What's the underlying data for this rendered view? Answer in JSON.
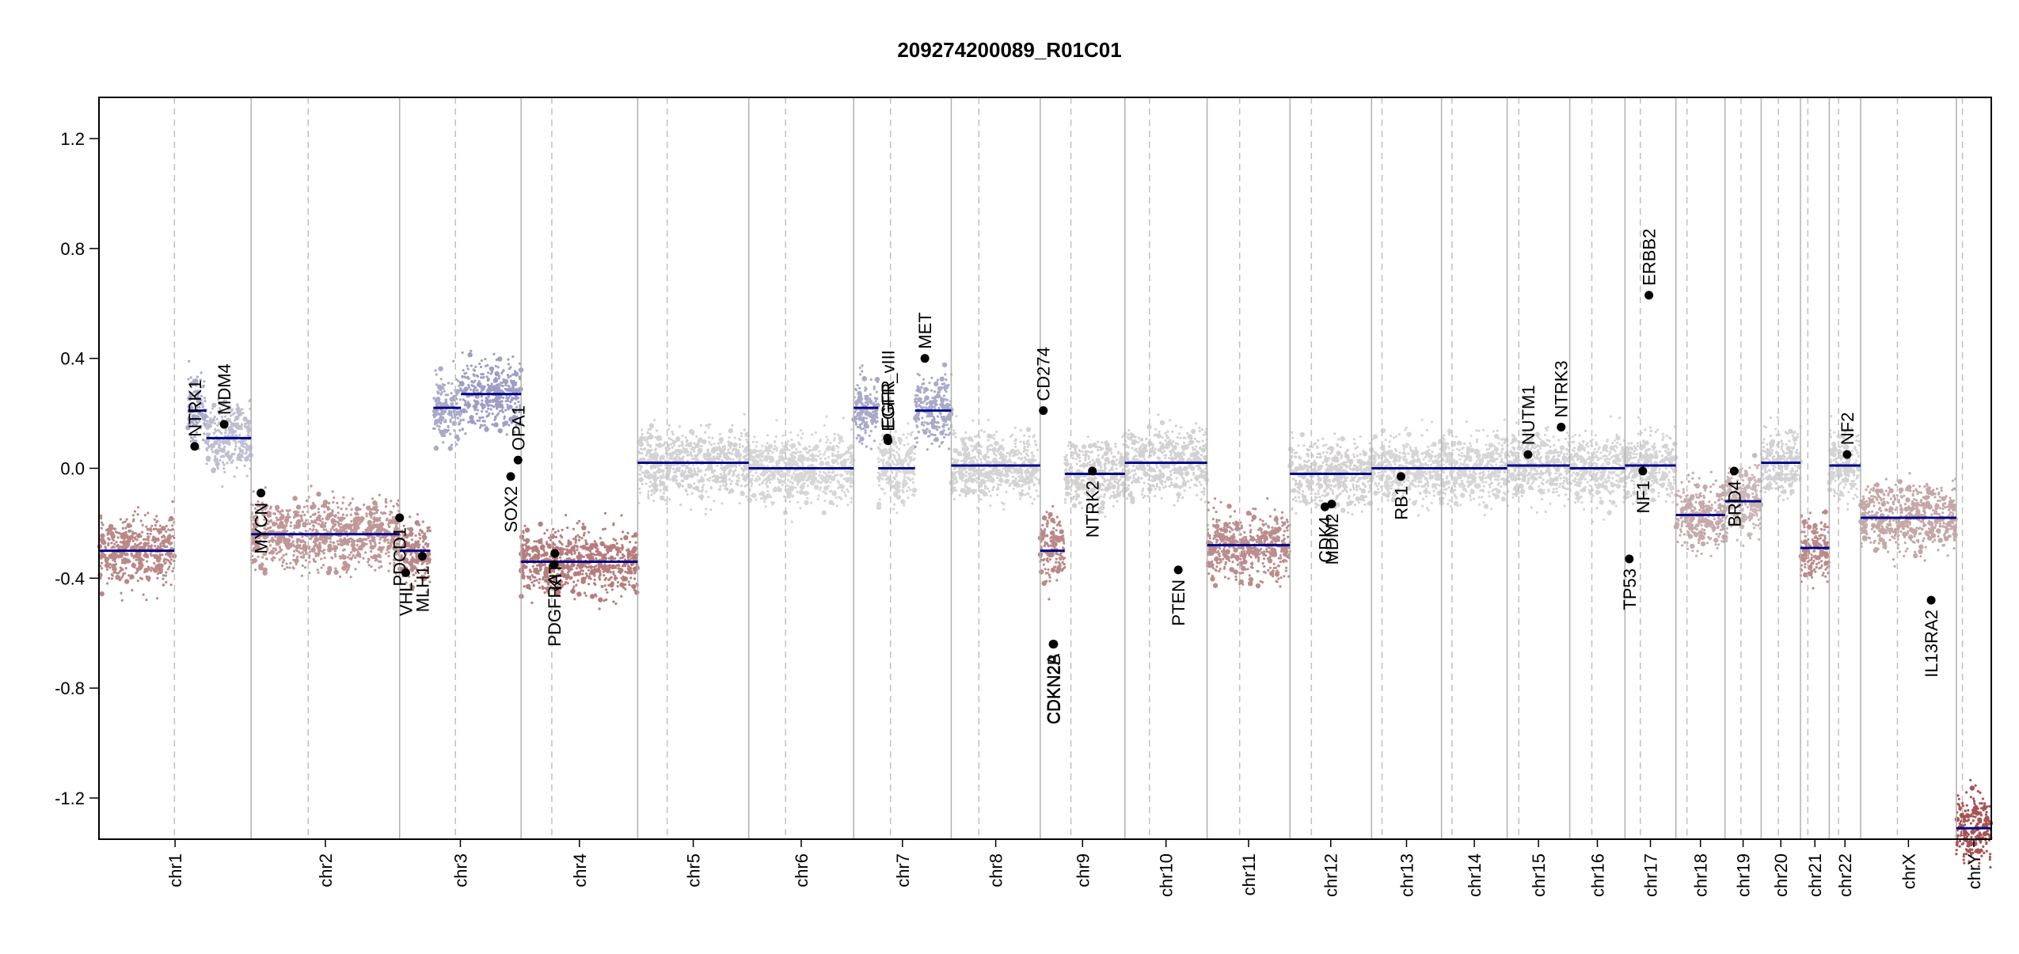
{
  "chart_data": {
    "type": "scatter",
    "title": "209274200089_R01C01",
    "xlabel": "",
    "ylabel": "",
    "ylim": [
      -1.35,
      1.35
    ],
    "y_ticks": [
      1.2,
      0.8,
      0.4,
      0.0,
      -0.4,
      -0.8,
      -1.2
    ],
    "y_tick_labels": [
      "1.2",
      "0.8",
      "0.4",
      "0.0",
      "-0.4",
      "-0.8",
      "-1.2"
    ],
    "grid": false,
    "colors": {
      "gain": "#3f3fa0",
      "loss": "#8b1a1a",
      "neutral": "#c8c8c8",
      "segment": "#00008b",
      "gene_point": "#000000",
      "boundary": "#b0b0b0",
      "centromere": "#c0c0c0",
      "axis": "#000000"
    },
    "chromosomes": [
      {
        "name": "chr1",
        "length": 248,
        "centromere": 123
      },
      {
        "name": "chr2",
        "length": 242,
        "centromere": 93
      },
      {
        "name": "chr3",
        "length": 198,
        "centromere": 91
      },
      {
        "name": "chr4",
        "length": 190,
        "centromere": 50
      },
      {
        "name": "chr5",
        "length": 181,
        "centromere": 48
      },
      {
        "name": "chr6",
        "length": 171,
        "centromere": 60
      },
      {
        "name": "chr7",
        "length": 159,
        "centromere": 60
      },
      {
        "name": "chr8",
        "length": 145,
        "centromere": 45
      },
      {
        "name": "chr9",
        "length": 138,
        "centromere": 50
      },
      {
        "name": "chr10",
        "length": 134,
        "centromere": 40
      },
      {
        "name": "chr11",
        "length": 135,
        "centromere": 53
      },
      {
        "name": "chr12",
        "length": 133,
        "centromere": 35
      },
      {
        "name": "chr13",
        "length": 114,
        "centromere": 17
      },
      {
        "name": "chr14",
        "length": 107,
        "centromere": 17
      },
      {
        "name": "chr15",
        "length": 102,
        "centromere": 19
      },
      {
        "name": "chr16",
        "length": 90,
        "centromere": 36
      },
      {
        "name": "chr17",
        "length": 83,
        "centromere": 25
      },
      {
        "name": "chr18",
        "length": 80,
        "centromere": 18
      },
      {
        "name": "chr19",
        "length": 59,
        "centromere": 26
      },
      {
        "name": "chr20",
        "length": 64,
        "centromere": 28
      },
      {
        "name": "chr21",
        "length": 47,
        "centromere": 12
      },
      {
        "name": "chr22",
        "length": 51,
        "centromere": 15
      },
      {
        "name": "chrX",
        "length": 156,
        "centromere": 60
      },
      {
        "name": "chrY",
        "length": 57,
        "centromere": 10
      }
    ],
    "segments": [
      {
        "chr": "chr1",
        "start": 0,
        "end": 123,
        "value": -0.3
      },
      {
        "chr": "chr1",
        "start": 145,
        "end": 175,
        "value": 0.21
      },
      {
        "chr": "chr1",
        "start": 175,
        "end": 248,
        "value": 0.11
      },
      {
        "chr": "chr2",
        "start": 0,
        "end": 242,
        "value": -0.24
      },
      {
        "chr": "chr3",
        "start": 0,
        "end": 50,
        "value": -0.3
      },
      {
        "chr": "chr3",
        "start": 55,
        "end": 100,
        "value": 0.22
      },
      {
        "chr": "chr3",
        "start": 100,
        "end": 198,
        "value": 0.27
      },
      {
        "chr": "chr4",
        "start": 0,
        "end": 190,
        "value": -0.34
      },
      {
        "chr": "chr5",
        "start": 0,
        "end": 181,
        "value": 0.02
      },
      {
        "chr": "chr6",
        "start": 0,
        "end": 171,
        "value": 0.0
      },
      {
        "chr": "chr7",
        "start": 0,
        "end": 40,
        "value": 0.22
      },
      {
        "chr": "chr7",
        "start": 40,
        "end": 100,
        "value": 0.0
      },
      {
        "chr": "chr7",
        "start": 100,
        "end": 159,
        "value": 0.21
      },
      {
        "chr": "chr8",
        "start": 0,
        "end": 145,
        "value": 0.01
      },
      {
        "chr": "chr9",
        "start": 0,
        "end": 40,
        "value": -0.3
      },
      {
        "chr": "chr9",
        "start": 40,
        "end": 138,
        "value": -0.02
      },
      {
        "chr": "chr10",
        "start": 0,
        "end": 134,
        "value": 0.02
      },
      {
        "chr": "chr11",
        "start": 0,
        "end": 135,
        "value": -0.28
      },
      {
        "chr": "chr12",
        "start": 0,
        "end": 133,
        "value": -0.02
      },
      {
        "chr": "chr13",
        "start": 0,
        "end": 114,
        "value": 0.0
      },
      {
        "chr": "chr14",
        "start": 0,
        "end": 107,
        "value": 0.0
      },
      {
        "chr": "chr15",
        "start": 0,
        "end": 102,
        "value": 0.01
      },
      {
        "chr": "chr16",
        "start": 0,
        "end": 90,
        "value": 0.0
      },
      {
        "chr": "chr17",
        "start": 0,
        "end": 83,
        "value": 0.01
      },
      {
        "chr": "chr18",
        "start": 0,
        "end": 80,
        "value": -0.17
      },
      {
        "chr": "chr19",
        "start": 0,
        "end": 59,
        "value": -0.12
      },
      {
        "chr": "chr20",
        "start": 0,
        "end": 64,
        "value": 0.02
      },
      {
        "chr": "chr21",
        "start": 0,
        "end": 47,
        "value": -0.29
      },
      {
        "chr": "chr22",
        "start": 0,
        "end": 51,
        "value": 0.01
      },
      {
        "chr": "chrX",
        "start": 0,
        "end": 156,
        "value": -0.18
      },
      {
        "chr": "chrY",
        "start": 0,
        "end": 57,
        "value": -1.31
      }
    ],
    "genes": [
      {
        "label": "NTRK1",
        "chr": "chr1",
        "pos": 156,
        "value": 0.08
      },
      {
        "label": "MDM4",
        "chr": "chr1",
        "pos": 204,
        "value": 0.16
      },
      {
        "label": "MYCN",
        "chr": "chr2",
        "pos": 16,
        "value": -0.09
      },
      {
        "label": "VHL",
        "chr": "chr3",
        "pos": 10,
        "value": -0.38
      },
      {
        "label": "PDCD1",
        "chr": "chr2",
        "pos": 242,
        "value": -0.18
      },
      {
        "label": "MLH1",
        "chr": "chr3",
        "pos": 37,
        "value": -0.32
      },
      {
        "label": "SOX2",
        "chr": "chr3",
        "pos": 181,
        "value": -0.03
      },
      {
        "label": "OPA1",
        "chr": "chr3",
        "pos": 193,
        "value": 0.03
      },
      {
        "label": "PDGFRA",
        "chr": "chr4",
        "pos": 54,
        "value": -0.35
      },
      {
        "label": "KIT",
        "chr": "chr4",
        "pos": 55,
        "value": -0.31
      },
      {
        "label": "EGFR",
        "chr": "chr7",
        "pos": 55,
        "value": 0.11
      },
      {
        "label": "EGFR_vIII",
        "chr": "chr7",
        "pos": 56,
        "value": 0.1
      },
      {
        "label": "MET",
        "chr": "chr7",
        "pos": 116,
        "value": 0.4
      },
      {
        "label": "CD274",
        "chr": "chr9",
        "pos": 5,
        "value": 0.21
      },
      {
        "label": "CDKN2A",
        "chr": "chr9",
        "pos": 21,
        "value": -0.64
      },
      {
        "label": "CDKN2B",
        "chr": "chr9",
        "pos": 22,
        "value": -0.64
      },
      {
        "label": "NTRK2",
        "chr": "chr9",
        "pos": 85,
        "value": -0.01
      },
      {
        "label": "PTEN",
        "chr": "chr10",
        "pos": 87,
        "value": -0.37
      },
      {
        "label": "CDK4",
        "chr": "chr12",
        "pos": 57,
        "value": -0.14
      },
      {
        "label": "MDM2",
        "chr": "chr12",
        "pos": 68,
        "value": -0.13
      },
      {
        "label": "RB1",
        "chr": "chr13",
        "pos": 48,
        "value": -0.03
      },
      {
        "label": "NUTM1",
        "chr": "chr15",
        "pos": 34,
        "value": 0.05
      },
      {
        "label": "NTRK3",
        "chr": "chr15",
        "pos": 88,
        "value": 0.15
      },
      {
        "label": "TP53",
        "chr": "chr17",
        "pos": 7,
        "value": -0.33
      },
      {
        "label": "NF1",
        "chr": "chr17",
        "pos": 29,
        "value": -0.01
      },
      {
        "label": "ERBB2",
        "chr": "chr17",
        "pos": 39,
        "value": 0.63
      },
      {
        "label": "BRD4",
        "chr": "chr19",
        "pos": 15,
        "value": -0.01
      },
      {
        "label": "NF2",
        "chr": "chr22",
        "pos": 29,
        "value": 0.05
      },
      {
        "label": "IL13RA2",
        "chr": "chrX",
        "pos": 115,
        "value": -0.48
      }
    ]
  }
}
